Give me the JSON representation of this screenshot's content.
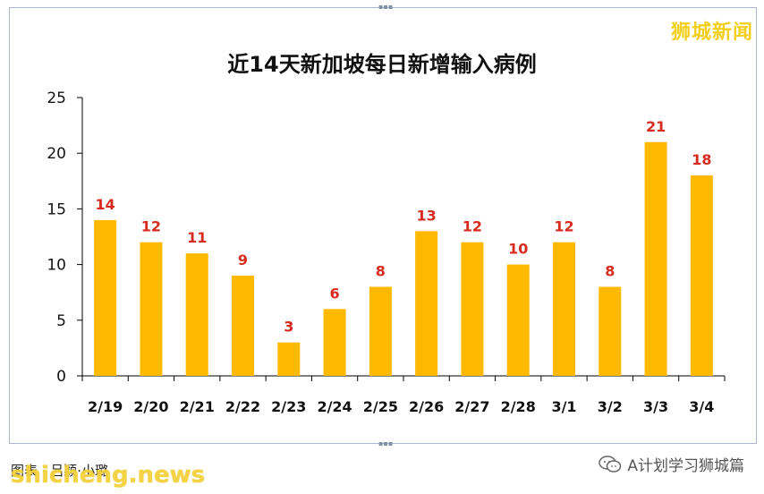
{
  "brand": "狮城新闻",
  "footer": {
    "credit": "图表 · 吕颖·小璐",
    "watermark": "shicheng.news",
    "account": "A计划学习狮城篇"
  },
  "colors": {
    "bar": "#ffb900",
    "label": "#d62b1e",
    "axis": "#000000",
    "frame": "#a8b8d0"
  },
  "chart_data": {
    "type": "bar",
    "title": "近14天新加坡每日新增输入病例",
    "xlabel": "",
    "ylabel": "",
    "categories": [
      "2/19",
      "2/20",
      "2/21",
      "2/22",
      "2/23",
      "2/24",
      "2/25",
      "2/26",
      "2/27",
      "2/28",
      "3/1",
      "3/2",
      "3/3",
      "3/4"
    ],
    "values": [
      14,
      12,
      11,
      9,
      3,
      6,
      8,
      13,
      12,
      10,
      12,
      8,
      21,
      18
    ],
    "ylim": [
      0,
      25
    ],
    "yticks": [
      0,
      5,
      10,
      15,
      20,
      25
    ],
    "grid": false,
    "legend": "none",
    "data_labels": true
  }
}
